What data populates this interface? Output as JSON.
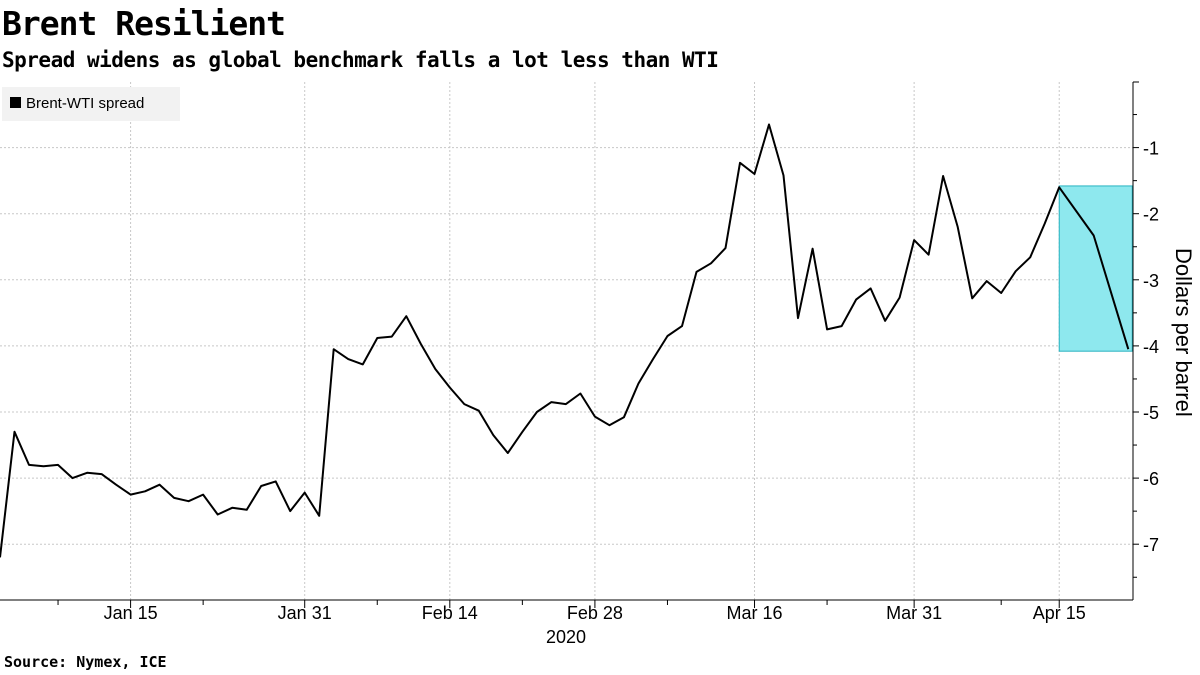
{
  "header": {
    "title": "Brent Resilient",
    "subtitle": "Spread widens as global benchmark falls a lot less than WTI"
  },
  "footer": {
    "source": "Source: Nymex, ICE"
  },
  "colors": {
    "line": "#000000",
    "highlight_fill": "#8ee8ee",
    "highlight_stroke": "#27b3c0",
    "grid": "#c8c8c8"
  },
  "chart_data": {
    "type": "line",
    "title": "Brent Resilient",
    "subtitle": "Spread widens as global benchmark falls a lot less than WTI",
    "xlabel": "2020",
    "ylabel": "Dollars per barrel",
    "ylim": [
      -7.8,
      1.0
    ],
    "yticks": [
      -1,
      -2,
      -3,
      -4,
      -5,
      -6,
      -7
    ],
    "ytick_labels": [
      "-1",
      "-2",
      "-3",
      "-4",
      "-5",
      "-6",
      "-7"
    ],
    "xtick_labels": [
      "Jan 15",
      "Jan 31",
      "Feb 14",
      "Feb 28",
      "Mar 16",
      "Mar 31",
      "Apr 15"
    ],
    "x_year_label": "2020",
    "grid": true,
    "legend": {
      "position": "top-left",
      "entries": [
        "Brent-WTI spread"
      ]
    },
    "series": [
      {
        "name": "Brent-WTI spread",
        "dates": [
          "Jan 2",
          "Jan 3",
          "Jan 6",
          "Jan 7",
          "Jan 8",
          "Jan 9",
          "Jan 10",
          "Jan 13",
          "Jan 14",
          "Jan 15",
          "Jan 16",
          "Jan 17",
          "Jan 20",
          "Jan 21",
          "Jan 22",
          "Jan 23",
          "Jan 24",
          "Jan 27",
          "Jan 28",
          "Jan 29",
          "Jan 30",
          "Jan 31",
          "Feb 3",
          "Feb 4",
          "Feb 5",
          "Feb 6",
          "Feb 7",
          "Feb 10",
          "Feb 11",
          "Feb 12",
          "Feb 13",
          "Feb 14",
          "Feb 17",
          "Feb 18",
          "Feb 19",
          "Feb 20",
          "Feb 21",
          "Feb 24",
          "Feb 25",
          "Feb 26",
          "Feb 27",
          "Feb 28",
          "Mar 2",
          "Mar 3",
          "Mar 4",
          "Mar 5",
          "Mar 6",
          "Mar 9",
          "Mar 10",
          "Mar 11",
          "Mar 12",
          "Mar 13",
          "Mar 16",
          "Mar 17",
          "Mar 18",
          "Mar 19",
          "Mar 20",
          "Mar 23",
          "Mar 24",
          "Mar 25",
          "Mar 26",
          "Mar 27",
          "Mar 30",
          "Mar 31",
          "Apr 1",
          "Apr 2",
          "Apr 3",
          "Apr 6",
          "Apr 7",
          "Apr 8",
          "Apr 9",
          "Apr 13",
          "Apr 14",
          "Apr 15",
          "Apr 16",
          "Apr 17"
        ],
        "values": [
          -7.2,
          -5.3,
          -5.8,
          -5.82,
          -5.8,
          -6.0,
          -5.92,
          -5.94,
          -6.1,
          -6.25,
          -6.2,
          -6.1,
          -6.3,
          -6.35,
          -6.25,
          -6.55,
          -6.45,
          -6.48,
          -6.12,
          -6.05,
          -6.5,
          -6.22,
          -6.57,
          -4.05,
          -4.2,
          -4.28,
          -3.88,
          -3.86,
          -3.55,
          -3.97,
          -4.35,
          -4.63,
          -4.88,
          -4.98,
          -5.35,
          -5.62,
          -5.3,
          -5.0,
          -4.85,
          -4.88,
          -4.72,
          -5.07,
          -5.2,
          -5.08,
          -4.57,
          -4.2,
          -3.85,
          -3.7,
          -2.88,
          -2.75,
          -2.52,
          -1.23,
          -1.4,
          -0.65,
          -1.42,
          -3.58,
          -2.53,
          -3.75,
          -3.7,
          -3.3,
          -3.13,
          -3.62,
          -3.27,
          -2.4,
          -2.62,
          -1.43,
          -2.2,
          -3.28,
          -3.02,
          -3.2,
          -2.87,
          -2.66,
          -2.15,
          -1.6,
          -2.33,
          -4.05
        ]
      }
    ],
    "highlight": {
      "from": "Apr 15",
      "to": "Apr 17",
      "y_range": [
        -4.08,
        -1.58
      ]
    }
  }
}
